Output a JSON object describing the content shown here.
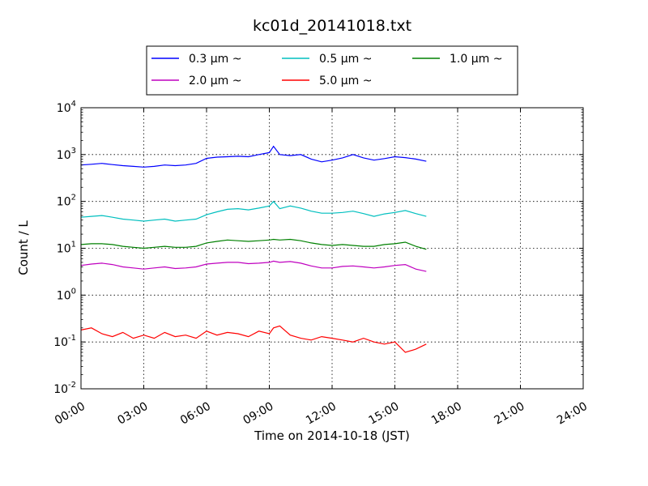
{
  "chart_data": {
    "type": "line",
    "title": "kc01d_20141018.txt",
    "xlabel": "Time on 2014-10-18 (JST)",
    "ylabel": "Count / L",
    "x_range_hours": [
      0,
      24
    ],
    "x_ticks": [
      {
        "hour": 0,
        "label": "00:00"
      },
      {
        "hour": 3,
        "label": "03:00"
      },
      {
        "hour": 6,
        "label": "06:00"
      },
      {
        "hour": 9,
        "label": "09:00"
      },
      {
        "hour": 12,
        "label": "12:00"
      },
      {
        "hour": 15,
        "label": "15:00"
      },
      {
        "hour": 18,
        "label": "18:00"
      },
      {
        "hour": 21,
        "label": "21:00"
      },
      {
        "hour": 24,
        "label": "24:00"
      }
    ],
    "y_scale": "log",
    "ylim": [
      0.01,
      10000
    ],
    "y_ticks": [
      {
        "exp": -2,
        "base": "10",
        "sup": "-2"
      },
      {
        "exp": -1,
        "base": "10",
        "sup": "-1"
      },
      {
        "exp": 0,
        "base": "10",
        "sup": "0"
      },
      {
        "exp": 1,
        "base": "10",
        "sup": "1"
      },
      {
        "exp": 2,
        "base": "10",
        "sup": "2"
      },
      {
        "exp": 3,
        "base": "10",
        "sup": "3"
      },
      {
        "exp": 4,
        "base": "10",
        "sup": "4"
      }
    ],
    "grid": true,
    "legend_position": "top, above plot",
    "series": [
      {
        "name": "0.3 μm ~",
        "color": "#0000ff",
        "x": [
          0,
          0.5,
          1,
          1.5,
          2,
          2.5,
          3,
          3.5,
          4,
          4.5,
          5,
          5.5,
          6,
          6.5,
          7,
          7.5,
          8,
          8.5,
          9,
          9.2,
          9.5,
          10,
          10.5,
          11,
          11.5,
          12,
          12.5,
          13,
          13.5,
          14,
          14.5,
          15,
          15.5,
          16,
          16.5
        ],
        "y": [
          600,
          620,
          650,
          610,
          580,
          560,
          540,
          560,
          600,
          580,
          600,
          650,
          830,
          880,
          900,
          920,
          900,
          1000,
          1100,
          1500,
          1000,
          950,
          1000,
          800,
          700,
          760,
          850,
          1000,
          850,
          760,
          820,
          900,
          860,
          800,
          720
        ]
      },
      {
        "name": "0.5 μm ~",
        "color": "#00bfbf",
        "x": [
          0,
          0.5,
          1,
          1.5,
          2,
          2.5,
          3,
          3.5,
          4,
          4.5,
          5,
          5.5,
          6,
          6.5,
          7,
          7.5,
          8,
          8.5,
          9,
          9.2,
          9.5,
          10,
          10.5,
          11,
          11.5,
          12,
          12.5,
          13,
          13.5,
          14,
          14.5,
          15,
          15.5,
          16,
          16.5
        ],
        "y": [
          46,
          48,
          50,
          46,
          42,
          40,
          38,
          40,
          42,
          38,
          40,
          42,
          52,
          60,
          68,
          70,
          66,
          72,
          80,
          100,
          70,
          80,
          72,
          62,
          56,
          56,
          58,
          62,
          55,
          48,
          54,
          58,
          64,
          55,
          48
        ]
      },
      {
        "name": "1.0 μm ~",
        "color": "#008000",
        "x": [
          0,
          0.5,
          1,
          1.5,
          2,
          2.5,
          3,
          3.5,
          4,
          4.5,
          5,
          5.5,
          6,
          6.5,
          7,
          7.5,
          8,
          8.5,
          9,
          9.2,
          9.5,
          10,
          10.5,
          11,
          11.5,
          12,
          12.5,
          13,
          13.5,
          14,
          14.5,
          15,
          15.5,
          16,
          16.5
        ],
        "y": [
          12,
          12.5,
          12.5,
          12,
          11,
          10.5,
          10,
          10.5,
          11,
          10.5,
          10.5,
          11,
          13,
          14,
          15,
          14.5,
          14,
          14.5,
          15,
          15.5,
          15,
          15.5,
          14.5,
          13,
          12,
          11.5,
          12,
          11.5,
          11,
          11,
          12,
          12.5,
          13.5,
          11,
          9.5
        ]
      },
      {
        "name": "2.0 μm ~",
        "color": "#bf00bf",
        "x": [
          0,
          0.5,
          1,
          1.5,
          2,
          2.5,
          3,
          3.5,
          4,
          4.5,
          5,
          5.5,
          6,
          6.5,
          7,
          7.5,
          8,
          8.5,
          9,
          9.2,
          9.5,
          10,
          10.5,
          11,
          11.5,
          12,
          12.5,
          13,
          13.5,
          14,
          14.5,
          15,
          15.5,
          16,
          16.5
        ],
        "y": [
          4.3,
          4.6,
          4.8,
          4.5,
          4,
          3.8,
          3.6,
          3.8,
          4,
          3.7,
          3.8,
          4,
          4.6,
          4.8,
          5,
          5,
          4.7,
          4.8,
          5,
          5.3,
          5,
          5.2,
          4.8,
          4.2,
          3.8,
          3.8,
          4.1,
          4.2,
          4,
          3.8,
          4,
          4.3,
          4.5,
          3.6,
          3.2
        ]
      },
      {
        "name": "5.0 μm ~",
        "color": "#ff0000",
        "x": [
          0,
          0.5,
          1,
          1.5,
          2,
          2.5,
          3,
          3.5,
          4,
          4.5,
          5,
          5.5,
          6,
          6.5,
          7,
          7.5,
          8,
          8.5,
          9,
          9.2,
          9.5,
          10,
          10.5,
          11,
          11.5,
          12,
          12.5,
          13,
          13.5,
          14,
          14.5,
          15,
          15.5,
          16,
          16.5
        ],
        "y": [
          0.18,
          0.2,
          0.15,
          0.13,
          0.16,
          0.12,
          0.14,
          0.12,
          0.16,
          0.13,
          0.14,
          0.12,
          0.17,
          0.14,
          0.16,
          0.15,
          0.13,
          0.17,
          0.15,
          0.2,
          0.22,
          0.14,
          0.12,
          0.11,
          0.13,
          0.12,
          0.11,
          0.1,
          0.12,
          0.1,
          0.09,
          0.1,
          0.06,
          0.07,
          0.09
        ]
      }
    ]
  }
}
